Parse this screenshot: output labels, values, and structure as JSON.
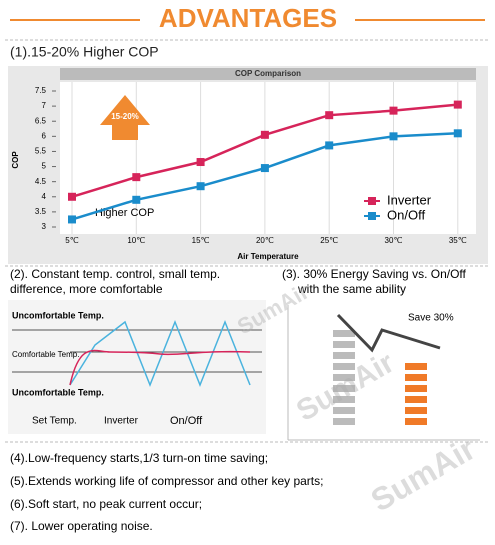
{
  "header": {
    "title": "ADVANTAGES"
  },
  "section1": {
    "heading": "(1).15-20% Higher COP"
  },
  "chart_data": {
    "type": "line",
    "title": "COP Comparison",
    "y_label": "COP",
    "x_label": "Air Temperature",
    "categories": [
      "5℃",
      "10℃",
      "15℃",
      "20℃",
      "25℃",
      "30℃",
      "35℃"
    ],
    "series": [
      {
        "name": "Inverter",
        "color": "#d6245a",
        "values": [
          4.0,
          4.65,
          5.15,
          6.05,
          6.7,
          6.85,
          7.05
        ]
      },
      {
        "name": "On/Off",
        "color": "#1a8ccb",
        "values": [
          3.25,
          3.9,
          4.35,
          4.95,
          5.7,
          6.0,
          6.1
        ]
      }
    ],
    "ylim": [
      3,
      7.5
    ],
    "yticks": [
      3,
      3.5,
      4,
      4.5,
      5,
      5.5,
      6,
      6.5,
      7,
      7.5
    ],
    "grid": "x",
    "legend": "lower-right",
    "annotations": [
      "15-20%",
      "Higher COP"
    ]
  },
  "section2": {
    "heading": [
      "(2). Constant temp. control, small temp.",
      "difference, more comfortable"
    ],
    "labels": [
      "Uncomfortable Temp.",
      "Comfortable Temp.",
      "Uncomfortable Temp."
    ],
    "legend": [
      "Set Temp.",
      "Inverter",
      "On/Off"
    ]
  },
  "section3": {
    "heading": [
      "(3). 30% Energy Saving vs. On/Off",
      "with the same ability"
    ],
    "note": "Save 30%"
  },
  "items": [
    "(4).Low-frequency starts,1/3 turn-on time saving;",
    "(5).Extends working life of compressor and other key parts;",
    "(6).Soft start, no peak current occur;",
    "(7). Lower operating noise."
  ],
  "watermark": "SumAir"
}
